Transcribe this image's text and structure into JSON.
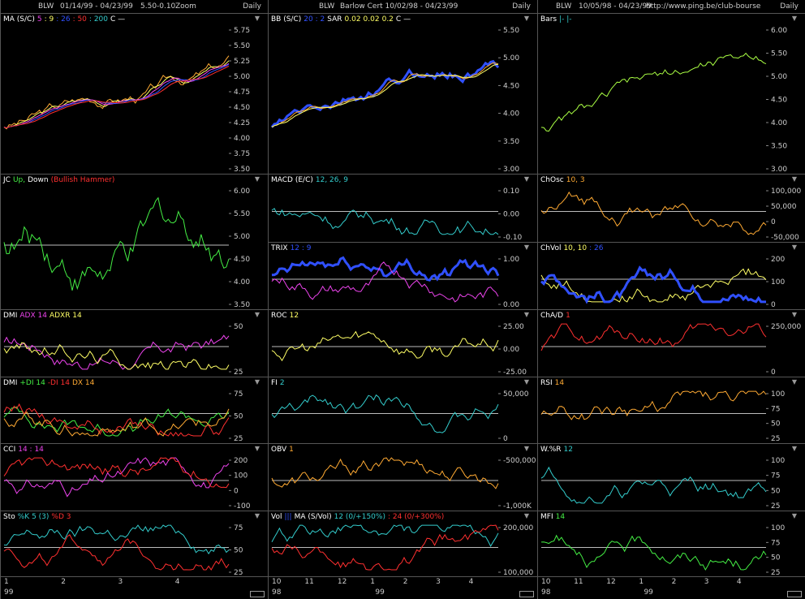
{
  "colors": {
    "white": "#ffffff",
    "yellow": "#ffff66",
    "orange": "#ffaa33",
    "red": "#ff3030",
    "green": "#44ee44",
    "blue": "#3050ff",
    "cyan": "#33cccc",
    "magenta": "#ee44ee",
    "purple": "#cc44cc",
    "lime": "#aaff44"
  },
  "columns": [
    {
      "header": {
        "symbol": "BLW",
        "range": "01/14/99 - 04/23/99",
        "price": "5.50",
        "change": "-0.10",
        "extra": "Zoom",
        "period": "Daily"
      },
      "panels": [
        {
          "title": [
            {
              "t": "MA (S/C)",
              "c": "white"
            },
            {
              "t": "5",
              "c": "magenta"
            },
            {
              "t": ": 9",
              "c": "yellow"
            },
            {
              "t": ": 26",
              "c": "blue"
            },
            {
              "t": ": 50",
              "c": "red"
            },
            {
              "t": ": 200",
              "c": "cyan"
            },
            {
              "t": "C —",
              "c": "white"
            }
          ],
          "ticks": [
            "5.75",
            "5.50",
            "5.25",
            "5.00",
            "4.75",
            "4.50",
            "4.25",
            "4.00",
            "3.75",
            "3.50"
          ]
        },
        {
          "title": [
            {
              "t": "JC",
              "c": "white"
            },
            {
              "t": "Up,",
              "c": "green"
            },
            {
              "t": "Down",
              "c": "white"
            },
            {
              "t": "(Bullish Hammer)",
              "c": "red"
            }
          ],
          "ticks": [
            "6.00",
            "5.50",
            "5.00",
            "4.50",
            "4.00",
            "3.50"
          ]
        },
        {
          "title": [
            {
              "t": "DMI",
              "c": "white"
            },
            {
              "t": "ADX 14",
              "c": "magenta"
            },
            {
              "t": "ADXR 14",
              "c": "yellow"
            }
          ],
          "ticks": [
            "50",
            "25"
          ]
        },
        {
          "title": [
            {
              "t": "DMI",
              "c": "white"
            },
            {
              "t": "+DI 14",
              "c": "green"
            },
            {
              "t": "-DI 14",
              "c": "red"
            },
            {
              "t": "DX 14",
              "c": "orange"
            }
          ],
          "ticks": [
            "75",
            "50",
            "25"
          ]
        },
        {
          "title": [
            {
              "t": "CCI",
              "c": "white"
            },
            {
              "t": "14 : 14",
              "c": "magenta"
            }
          ],
          "ticks": [
            "200",
            "100",
            "0",
            "-100"
          ]
        },
        {
          "title": [
            {
              "t": "Sto",
              "c": "white"
            },
            {
              "t": "%K 5 (3)",
              "c": "cyan"
            },
            {
              "t": "%D 3",
              "c": "red"
            }
          ],
          "ticks": [
            "75",
            "50",
            "25"
          ]
        }
      ],
      "axis": {
        "months": [
          "1",
          "2",
          "3",
          "4"
        ],
        "year": "99"
      }
    },
    {
      "header": {
        "symbol": "BLW",
        "range": "Barlow Cert  10/02/98 - 04/23/99",
        "period": "Daily"
      },
      "panels": [
        {
          "title": [
            {
              "t": "BB (S/C)",
              "c": "white"
            },
            {
              "t": "20 : 2",
              "c": "blue"
            },
            {
              "t": "SAR",
              "c": "white"
            },
            {
              "t": "0.02",
              "c": "yellow"
            },
            {
              "t": "0.02",
              "c": "yellow"
            },
            {
              "t": "0.2",
              "c": "yellow"
            },
            {
              "t": "C —",
              "c": "white"
            }
          ],
          "ticks": [
            "5.50",
            "5.00",
            "4.50",
            "4.00",
            "3.50",
            "3.00"
          ]
        },
        {
          "title": [
            {
              "t": "MACD (E/C)",
              "c": "white"
            },
            {
              "t": "12, 26, 9",
              "c": "cyan"
            }
          ],
          "ticks": [
            "0.10",
            "0.00",
            "-0.10"
          ]
        },
        {
          "title": [
            {
              "t": "TRIX",
              "c": "white"
            },
            {
              "t": "12 : 9",
              "c": "blue"
            }
          ],
          "ticks": [
            "1.00",
            "0.00"
          ]
        },
        {
          "title": [
            {
              "t": "ROC",
              "c": "white"
            },
            {
              "t": "12",
              "c": "yellow"
            }
          ],
          "ticks": [
            "25.00",
            "0.00",
            "-25.00"
          ]
        },
        {
          "title": [
            {
              "t": "FI",
              "c": "white"
            },
            {
              "t": "2",
              "c": "cyan"
            }
          ],
          "ticks": [
            "50,000",
            "0"
          ]
        },
        {
          "title": [
            {
              "t": "OBV",
              "c": "white"
            },
            {
              "t": "1",
              "c": "orange"
            }
          ],
          "ticks": [
            "-500,000",
            "-1,000K"
          ]
        },
        {
          "title": [
            {
              "t": "Vol",
              "c": "white"
            },
            {
              "t": "|||",
              "c": "blue"
            },
            {
              "t": "MA (S/Vol)",
              "c": "white"
            },
            {
              "t": "12 (0/+150%)",
              "c": "cyan"
            },
            {
              "t": ": 24 (0/+300%)",
              "c": "red"
            }
          ],
          "ticks": [
            "200,000",
            "100,000"
          ]
        }
      ],
      "axis": {
        "months": [
          "10",
          "11",
          "12",
          "1",
          "2",
          "3",
          "4"
        ],
        "years": [
          "98",
          "99"
        ]
      }
    },
    {
      "header": {
        "symbol": "BLW",
        "range": "10/05/98 - 04/23/99",
        "url": "http://www.ping.be/club-bourse",
        "period": "Daily"
      },
      "panels": [
        {
          "title": [
            {
              "t": "Bars",
              "c": "white"
            },
            {
              "t": "|- |-",
              "c": "cyan"
            }
          ],
          "ticks": [
            "6.00",
            "5.50",
            "5.00",
            "4.50",
            "4.00",
            "3.50",
            "3.00"
          ]
        },
        {
          "title": [
            {
              "t": "ChOsc",
              "c": "white"
            },
            {
              "t": "10, 3",
              "c": "orange"
            }
          ],
          "ticks": [
            "100,000",
            "50,000",
            "0",
            "-50,000"
          ]
        },
        {
          "title": [
            {
              "t": "ChVol",
              "c": "white"
            },
            {
              "t": "10, 10",
              "c": "yellow"
            },
            {
              "t": ": 26",
              "c": "blue"
            }
          ],
          "ticks": [
            "200",
            "100",
            "0"
          ]
        },
        {
          "title": [
            {
              "t": "ChA/D",
              "c": "white"
            },
            {
              "t": "1",
              "c": "red"
            }
          ],
          "ticks": [
            "250,000",
            "0"
          ]
        },
        {
          "title": [
            {
              "t": "RSI",
              "c": "white"
            },
            {
              "t": "14",
              "c": "orange"
            }
          ],
          "ticks": [
            "100",
            "75",
            "50",
            "25"
          ]
        },
        {
          "title": [
            {
              "t": "W.%R",
              "c": "white"
            },
            {
              "t": "12",
              "c": "cyan"
            }
          ],
          "ticks": [
            "100",
            "75",
            "50",
            "25"
          ]
        },
        {
          "title": [
            {
              "t": "MFI",
              "c": "white"
            },
            {
              "t": "14",
              "c": "green"
            }
          ],
          "ticks": [
            "100",
            "75",
            "50",
            "25"
          ]
        }
      ],
      "axis": {
        "months": [
          "10",
          "11",
          "12",
          "1",
          "2",
          "3",
          "4"
        ],
        "years": [
          "98",
          "99"
        ]
      }
    }
  ]
}
